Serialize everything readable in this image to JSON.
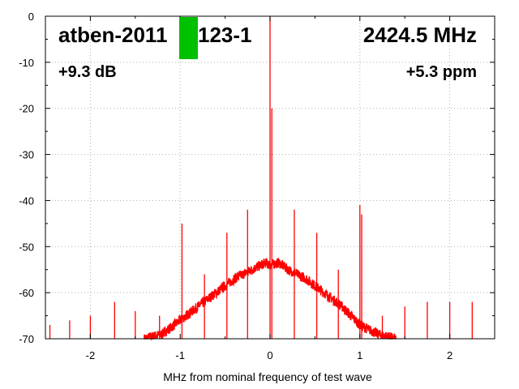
{
  "chart_data": {
    "type": "line",
    "title": "",
    "xlabel": "MHz from nominal frequency of test wave",
    "ylabel": "",
    "xlim": [
      -2.5,
      2.5
    ],
    "ylim": [
      -70,
      0
    ],
    "grid": true,
    "x_ticks": [
      -2,
      -1,
      0,
      1,
      2
    ],
    "y_ticks": [
      0,
      -10,
      -20,
      -30,
      -40,
      -50,
      -60,
      -70
    ],
    "x_tick_labels": [
      "-2",
      "-1",
      "0",
      "1",
      "2"
    ],
    "y_tick_labels": [
      "0",
      "-10",
      "-20",
      "-30",
      "-40",
      "-50",
      "-60",
      "-70"
    ],
    "series": [
      {
        "color": "#ff0000",
        "noise_floor": {
          "x": [
            -1.4,
            -1.2,
            -1.0,
            -0.8,
            -0.6,
            -0.4,
            -0.2,
            -0.05,
            0.0,
            0.1,
            0.2,
            0.4,
            0.6,
            0.8,
            1.0,
            1.2,
            1.4
          ],
          "y": [
            -70,
            -69,
            -66,
            -63,
            -60,
            -57,
            -55,
            -53.5,
            -54,
            -53.5,
            -55,
            -57,
            -60,
            -63,
            -67,
            -69,
            -70
          ]
        },
        "spikes": [
          {
            "x": -2.45,
            "y": -67
          },
          {
            "x": -2.23,
            "y": -66
          },
          {
            "x": -2.0,
            "y": -65
          },
          {
            "x": -1.73,
            "y": -62
          },
          {
            "x": -1.5,
            "y": -64
          },
          {
            "x": -1.23,
            "y": -65
          },
          {
            "x": -0.98,
            "y": -45
          },
          {
            "x": -0.73,
            "y": -56
          },
          {
            "x": -0.48,
            "y": -47
          },
          {
            "x": -0.25,
            "y": -42
          },
          {
            "x": 0.0,
            "y": 0
          },
          {
            "x": 0.02,
            "y": -20
          },
          {
            "x": 0.27,
            "y": -42
          },
          {
            "x": 0.52,
            "y": -47
          },
          {
            "x": 0.76,
            "y": -55
          },
          {
            "x": 1.0,
            "y": -41
          },
          {
            "x": 1.02,
            "y": -43
          },
          {
            "x": 1.25,
            "y": -65
          },
          {
            "x": 1.5,
            "y": -63
          },
          {
            "x": 1.75,
            "y": -62
          },
          {
            "x": 2.0,
            "y": -62
          },
          {
            "x": 2.25,
            "y": -62
          }
        ]
      }
    ],
    "annotations": {
      "device": "atben-2011",
      "device_suffix": "123-1",
      "frequency": "2424.5 MHz",
      "level": "+9.3 dB",
      "offset": "+5.3 ppm"
    },
    "marker_color": "#00c000"
  }
}
